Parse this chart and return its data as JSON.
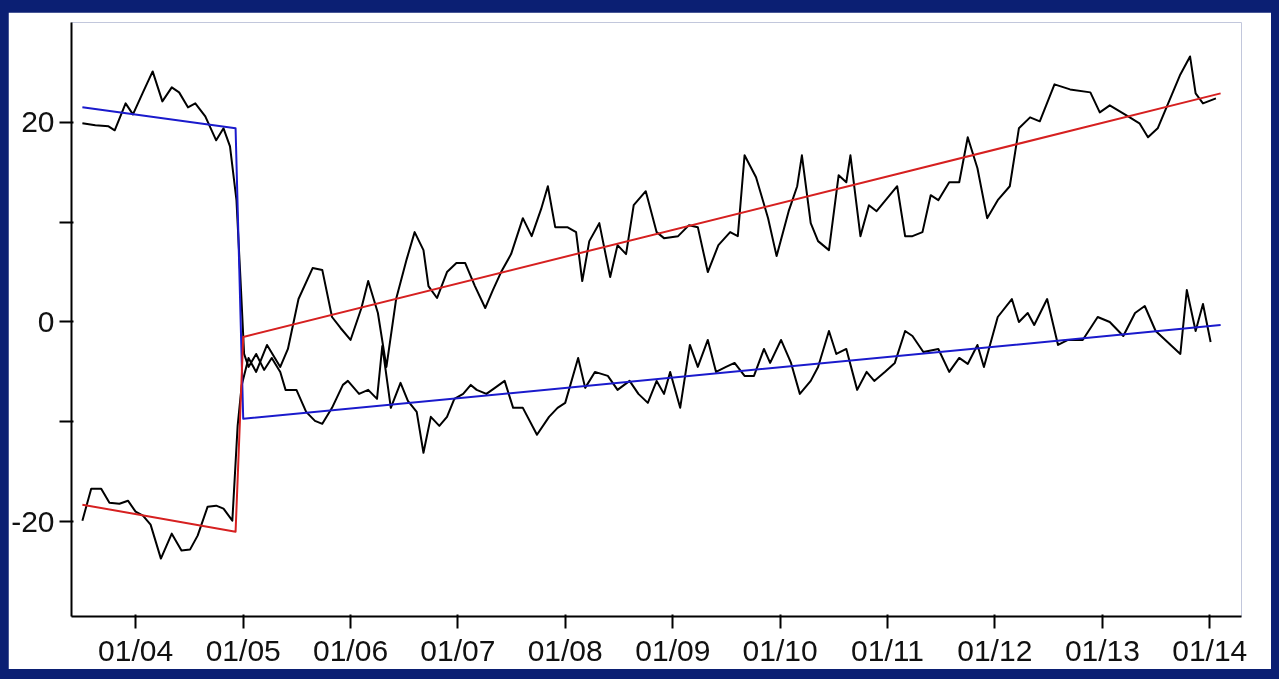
{
  "chart_data": {
    "type": "line",
    "xlim": [
      "2003-05-28",
      "2014-04-19"
    ],
    "ylim": [
      -29.5,
      30
    ],
    "xticks": [
      {
        "value": "2004-01",
        "label": "01/04"
      },
      {
        "value": "2005-01",
        "label": "01/05"
      },
      {
        "value": "2006-01",
        "label": "01/06"
      },
      {
        "value": "2007-01",
        "label": "01/07"
      },
      {
        "value": "2008-01",
        "label": "01/08"
      },
      {
        "value": "2009-01",
        "label": "01/09"
      },
      {
        "value": "2010-01",
        "label": "01/10"
      },
      {
        "value": "2011-01",
        "label": "01/11"
      },
      {
        "value": "2012-01",
        "label": "01/12"
      },
      {
        "value": "2013-01",
        "label": "01/13"
      },
      {
        "value": "2014-01",
        "label": "01/14"
      }
    ],
    "yticks": [
      -20,
      {
        "value": -10,
        "label": null
      },
      0,
      {
        "value": 10,
        "label": null
      },
      20
    ],
    "grid": false,
    "series": [
      {
        "color": "#000000",
        "x": [
          "2003-07-04",
          "2003-08-17",
          "2003-10-01",
          "2003-10-22",
          "2003-11-28",
          "2003-12-23",
          "2004-01-26",
          "2004-02-28",
          "2004-04-01",
          "2004-05-03",
          "2004-05-28",
          "2004-06-27",
          "2004-07-22",
          "2004-08-25",
          "2004-10-01",
          "2004-10-26",
          "2004-11-17",
          "2004-12-09",
          "2004-12-23",
          "2005-01-04",
          "2005-01-19",
          "2005-02-14",
          "2005-03-13",
          "2005-04-08",
          "2005-05-07",
          "2005-05-25",
          "2005-07-01",
          "2005-08-03",
          "2005-09-02",
          "2005-09-27",
          "2005-10-30",
          "2005-12-06",
          "2005-12-23",
          "2006-01-30",
          "2006-03-02",
          "2006-04-01",
          "2006-04-19",
          "2006-05-18",
          "2006-06-20",
          "2006-07-15",
          "2006-08-14",
          "2006-09-06",
          "2006-10-01",
          "2006-10-30",
          "2006-11-25",
          "2006-12-20",
          "2007-01-19",
          "2007-02-14",
          "2007-03-06",
          "2007-04-08",
          "2007-05-07",
          "2007-06-09",
          "2007-07-08",
          "2007-08-10",
          "2007-09-27",
          "2007-11-07",
          "2007-12-06",
          "2008-01-01",
          "2008-02-14",
          "2008-03-09",
          "2008-04-11",
          "2008-05-25",
          "2008-06-27",
          "2008-08-07",
          "2008-09-06",
          "2008-10-08",
          "2008-11-07",
          "2008-12-02",
          "2008-12-23",
          "2009-01-26",
          "2009-02-28",
          "2009-03-27",
          "2009-04-30",
          "2009-05-28",
          "2009-07-01",
          "2009-07-30",
          "2009-09-02",
          "2009-10-04",
          "2009-11-07",
          "2009-11-28",
          "2010-01-04",
          "2010-02-07",
          "2010-03-09",
          "2010-04-15",
          "2010-05-10",
          "2010-06-16",
          "2010-07-11",
          "2010-08-14",
          "2010-09-20",
          "2010-10-22",
          "2010-11-17",
          "2010-12-23",
          "2011-01-26",
          "2011-03-02",
          "2011-03-27",
          "2011-05-03",
          "2011-06-23",
          "2011-07-30",
          "2011-09-02",
          "2011-10-01",
          "2011-11-03",
          "2011-11-25",
          "2012-01-11",
          "2012-02-28",
          "2012-03-23",
          "2012-04-22",
          "2012-05-14",
          "2012-06-27",
          "2012-08-03",
          "2012-09-06",
          "2012-10-26",
          "2012-12-16",
          "2013-01-26",
          "2013-03-13",
          "2013-04-22",
          "2013-05-25",
          "2013-07-01",
          "2013-09-23",
          "2013-10-15",
          "2013-11-14",
          "2013-12-09",
          "2014-01-04"
        ],
        "values": [
          19.9,
          19.7,
          19.6,
          19.2,
          21.9,
          20.8,
          23.0,
          25.1,
          22.1,
          23.5,
          23.0,
          21.5,
          21.9,
          20.6,
          18.2,
          19.4,
          17.6,
          12.2,
          4.1,
          -3.2,
          -4.5,
          -3.2,
          -4.8,
          -3.6,
          -5.0,
          -6.8,
          -6.8,
          -9.0,
          -9.9,
          -10.2,
          -8.6,
          -6.3,
          -5.9,
          -7.2,
          -6.8,
          -7.7,
          -2.4,
          -8.6,
          -6.1,
          -7.9,
          -9.0,
          -13.1,
          -9.5,
          -10.4,
          -9.5,
          -7.7,
          -7.2,
          -6.3,
          -6.8,
          -7.2,
          -6.6,
          -5.9,
          -8.6,
          -8.6,
          -11.3,
          -9.5,
          -8.6,
          -8.1,
          -3.6,
          -6.6,
          -5.0,
          -5.4,
          -6.8,
          -5.9,
          -7.2,
          -8.1,
          -5.9,
          -7.2,
          -5.0,
          -8.6,
          -2.3,
          -4.5,
          -1.8,
          -5.0,
          -4.5,
          -4.1,
          -5.4,
          -5.4,
          -2.7,
          -4.1,
          -1.8,
          -4.1,
          -7.2,
          -5.9,
          -4.5,
          -0.9,
          -3.2,
          -2.7,
          -6.8,
          -5.0,
          -5.9,
          -5.0,
          -4.1,
          -0.9,
          -1.4,
          -3.0,
          -2.7,
          -5.0,
          -3.6,
          -4.2,
          -2.3,
          -4.5,
          0.5,
          2.3,
          0.0,
          0.9,
          -0.3,
          2.3,
          -2.3,
          -1.8,
          -1.8,
          0.5,
          0.0,
          -1.4,
          0.9,
          1.6,
          -0.9,
          -3.2,
          3.2,
          -0.9,
          1.8,
          -2.0
        ]
      },
      {
        "color": "#000000",
        "x": [
          "2003-07-04",
          "2003-08-03",
          "2003-09-06",
          "2003-10-04",
          "2003-11-07",
          "2003-12-06",
          "2004-01-01",
          "2004-01-26",
          "2004-02-21",
          "2004-03-27",
          "2004-05-03",
          "2004-06-05",
          "2004-07-04",
          "2004-07-30",
          "2004-09-02",
          "2004-10-01",
          "2004-10-26",
          "2004-11-25",
          "2004-12-13",
          "2004-12-27",
          "2005-01-19",
          "2005-02-14",
          "2005-03-23",
          "2005-05-07",
          "2005-06-02",
          "2005-07-08",
          "2005-08-25",
          "2005-09-27",
          "2005-10-30",
          "2005-11-28",
          "2006-01-01",
          "2006-02-07",
          "2006-03-02",
          "2006-04-04",
          "2006-05-03",
          "2006-06-05",
          "2006-07-11",
          "2006-08-07",
          "2006-09-06",
          "2006-09-23",
          "2006-10-22",
          "2006-11-25",
          "2006-12-27",
          "2007-01-26",
          "2007-02-28",
          "2007-04-04",
          "2007-04-30",
          "2007-05-28",
          "2007-07-01",
          "2007-08-10",
          "2007-09-09",
          "2007-10-11",
          "2007-11-03",
          "2007-11-28",
          "2008-01-08",
          "2008-02-07",
          "2008-02-28",
          "2008-03-23",
          "2008-04-26",
          "2008-06-02",
          "2008-06-27",
          "2008-07-26",
          "2008-08-21",
          "2008-10-01",
          "2008-11-07",
          "2008-12-02",
          "2009-01-19",
          "2009-02-25",
          "2009-03-27",
          "2009-04-30",
          "2009-06-05",
          "2009-07-15",
          "2009-08-10",
          "2009-09-02",
          "2009-10-11",
          "2009-11-21",
          "2009-12-20",
          "2010-01-30",
          "2010-02-28",
          "2010-03-16",
          "2010-04-15",
          "2010-05-10",
          "2010-06-16",
          "2010-07-19",
          "2010-08-14",
          "2010-08-28",
          "2010-10-01",
          "2010-10-30",
          "2010-11-25",
          "2011-02-03",
          "2011-03-02",
          "2011-03-27",
          "2011-04-30",
          "2011-05-28",
          "2011-06-23",
          "2011-07-30",
          "2011-09-02",
          "2011-10-01",
          "2011-11-03",
          "2011-12-06",
          "2012-01-11",
          "2012-02-21",
          "2012-03-23",
          "2012-04-30",
          "2012-06-02",
          "2012-07-22",
          "2012-09-13",
          "2012-11-21",
          "2012-12-23",
          "2013-01-26",
          "2013-04-04",
          "2013-05-07",
          "2013-06-05",
          "2013-07-08",
          "2013-09-23",
          "2013-10-26",
          "2013-11-14",
          "2013-12-09",
          "2014-01-22"
        ],
        "values": [
          -19.9,
          -16.7,
          -16.7,
          -18.1,
          -18.2,
          -17.9,
          -19.0,
          -19.4,
          -20.3,
          -23.7,
          -21.2,
          -22.9,
          -22.8,
          -21.4,
          -18.5,
          -18.4,
          -18.7,
          -19.9,
          -10.4,
          -6.3,
          -3.6,
          -5.0,
          -2.3,
          -4.5,
          -2.7,
          2.3,
          5.4,
          5.2,
          0.5,
          -0.6,
          -1.8,
          1.4,
          4.1,
          0.9,
          -4.5,
          2.3,
          6.3,
          9.0,
          7.2,
          3.6,
          2.4,
          5.0,
          5.9,
          5.9,
          3.6,
          1.4,
          3.2,
          5.0,
          6.8,
          10.4,
          8.6,
          11.3,
          13.6,
          9.5,
          9.5,
          9.0,
          4.1,
          8.1,
          9.9,
          4.5,
          7.7,
          6.8,
          11.7,
          13.1,
          9.0,
          8.4,
          8.6,
          9.7,
          9.5,
          5.0,
          7.7,
          9.0,
          8.6,
          16.7,
          14.5,
          10.4,
          6.6,
          11.1,
          13.6,
          16.7,
          9.9,
          8.1,
          7.2,
          14.7,
          14.0,
          16.7,
          8.6,
          11.7,
          11.1,
          13.6,
          8.6,
          8.6,
          9.0,
          12.7,
          12.2,
          14.0,
          14.0,
          18.5,
          15.4,
          10.4,
          12.2,
          13.6,
          19.4,
          20.5,
          20.1,
          23.8,
          23.3,
          23.0,
          21.0,
          21.7,
          20.5,
          19.9,
          18.5,
          19.4,
          24.8,
          26.6,
          22.9,
          21.9,
          22.4
        ]
      },
      {
        "color": "#1a1acc",
        "x": [
          "2003-07-04",
          "2004-12-06",
          "2005-01-01",
          "2014-02-07"
        ],
        "values": [
          21.5,
          19.4,
          -9.7,
          -0.3
        ]
      },
      {
        "color": "#d62020",
        "x": [
          "2003-07-04",
          "2004-12-06",
          "2005-01-01",
          "2014-02-07"
        ],
        "values": [
          -18.3,
          -21.0,
          -1.5,
          22.9
        ]
      }
    ]
  }
}
